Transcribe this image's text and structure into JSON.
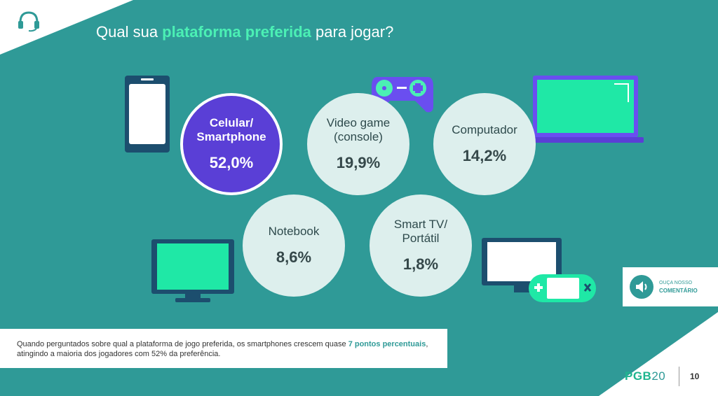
{
  "header": {
    "title_pre": "Qual sua ",
    "title_highlight": "plataforma preferida",
    "title_post": " para jogar?"
  },
  "platforms": [
    {
      "label": "Celular/\nSmartphone",
      "value": "52,0%"
    },
    {
      "label": "Video game\n(console)",
      "value": "19,9%"
    },
    {
      "label": "Computador",
      "value": "14,2%"
    },
    {
      "label": "Notebook",
      "value": "8,6%"
    },
    {
      "label": "Smart TV/\nPortátil",
      "value": "1,8%"
    }
  ],
  "note": {
    "text_pre": "Quando perguntados sobre qual a plataforma de jogo preferida, os smartphones crescem quase ",
    "text_bold": "7 pontos percentuais",
    "text_post": ", atingindo a maioria dos jogadores com 52% da preferência."
  },
  "audio_button": {
    "line1": "OUÇA NOSSO",
    "line2": "COMENTÁRIO"
  },
  "footer": {
    "brand_main": "PGB",
    "brand_year": "20",
    "page_number": "10"
  },
  "colors": {
    "background": "#2f9a97",
    "accent_green": "#4bf0b4",
    "highlight_purple": "#5a3fd6"
  },
  "icons": [
    "headset-icon",
    "smartphone-icon",
    "gamepad-icon",
    "laptop-icon",
    "monitor-icon",
    "tv-icon",
    "handheld-console-icon",
    "speaker-icon"
  ]
}
